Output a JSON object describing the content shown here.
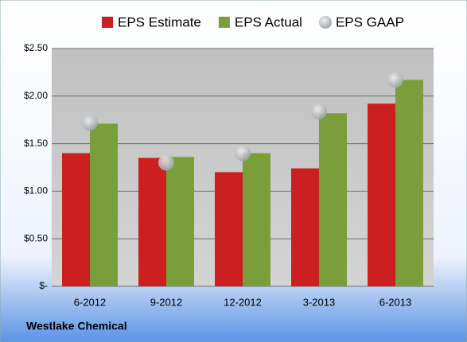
{
  "chart_data": {
    "type": "bar",
    "categories": [
      "6-2012",
      "9-2012",
      "12-2012",
      "3-2013",
      "6-2013"
    ],
    "series": [
      {
        "name": "EPS Estimate",
        "color": "#cc1f1f",
        "values": [
          1.4,
          1.35,
          1.2,
          1.24,
          1.92
        ]
      },
      {
        "name": "EPS Actual",
        "color": "#7a9e3a",
        "values": [
          1.71,
          1.36,
          1.4,
          1.82,
          2.17
        ]
      },
      {
        "name": "EPS GAAP",
        "color": "#b4b8bd",
        "marker": "circle",
        "values": [
          1.72,
          1.3,
          1.4,
          1.84,
          2.17
        ]
      }
    ],
    "ylim": [
      0,
      2.5
    ],
    "yticks": [
      {
        "value": 0,
        "label": "$-"
      },
      {
        "value": 0.5,
        "label": "$0.50"
      },
      {
        "value": 1,
        "label": "$1.00"
      },
      {
        "value": 1.5,
        "label": "$1.50"
      },
      {
        "value": 2,
        "label": "$2.00"
      },
      {
        "value": 2.5,
        "label": "$2.50"
      }
    ],
    "grid": true,
    "legend": "top",
    "footer": "Westlake Chemical"
  }
}
